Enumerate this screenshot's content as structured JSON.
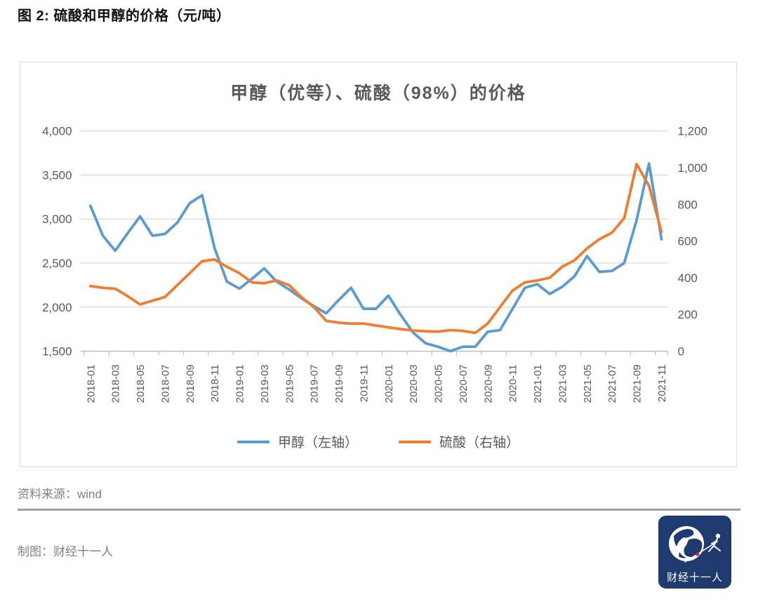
{
  "page": {
    "header_title": "图 2: 硫酸和甲醇的价格（元/吨）",
    "source_note": "资料来源：wind",
    "credit_note": "制图：财经十一人",
    "logo_text": "财经十一人"
  },
  "chart_data": {
    "type": "line",
    "title": "甲醇（优等）、硫酸（98%）的价格",
    "x": [
      "2018-01",
      "2018-02",
      "2018-03",
      "2018-04",
      "2018-05",
      "2018-06",
      "2018-07",
      "2018-08",
      "2018-09",
      "2018-10",
      "2018-11",
      "2018-12",
      "2019-01",
      "2019-02",
      "2019-03",
      "2019-04",
      "2019-05",
      "2019-06",
      "2019-07",
      "2019-08",
      "2019-09",
      "2019-10",
      "2019-11",
      "2019-12",
      "2020-01",
      "2020-02",
      "2020-03",
      "2020-04",
      "2020-05",
      "2020-06",
      "2020-07",
      "2020-08",
      "2020-09",
      "2020-10",
      "2020-11",
      "2020-12",
      "2021-01",
      "2021-02",
      "2021-03",
      "2021-04",
      "2021-05",
      "2021-06",
      "2021-07",
      "2021-08",
      "2021-09",
      "2021-10",
      "2021-11"
    ],
    "x_tick_labels": [
      "2018-01",
      "2018-03",
      "2018-05",
      "2018-07",
      "2018-09",
      "2018-11",
      "2019-01",
      "2019-03",
      "2019-05",
      "2019-07",
      "2019-09",
      "2019-11",
      "2020-01",
      "2020-03",
      "2020-05",
      "2020-07",
      "2020-09",
      "2020-11",
      "2021-01",
      "2021-03",
      "2021-05",
      "2021-07",
      "2021-09",
      "2021-11"
    ],
    "series": [
      {
        "name": "甲醇（左轴）",
        "axis": "left",
        "color": "#5B9BD5",
        "values": [
          3150,
          2810,
          2640,
          2840,
          3030,
          2810,
          2830,
          2960,
          3180,
          3270,
          2670,
          2290,
          2210,
          2320,
          2440,
          2290,
          2200,
          2100,
          2010,
          1930,
          2080,
          2220,
          1980,
          1980,
          2130,
          1910,
          1710,
          1590,
          1550,
          1500,
          1550,
          1550,
          1720,
          1740,
          1980,
          2220,
          2260,
          2150,
          2230,
          2350,
          2580,
          2400,
          2410,
          2500,
          2990,
          3630,
          2770
        ]
      },
      {
        "name": "硫酸（右轴）",
        "axis": "right",
        "color": "#ED7D31",
        "values": [
          355,
          345,
          340,
          300,
          255,
          275,
          295,
          360,
          425,
          490,
          500,
          460,
          425,
          375,
          370,
          385,
          360,
          295,
          240,
          165,
          155,
          150,
          150,
          140,
          130,
          120,
          112,
          108,
          106,
          115,
          110,
          100,
          150,
          240,
          330,
          375,
          385,
          400,
          460,
          495,
          560,
          610,
          645,
          725,
          1020,
          900,
          650
        ]
      }
    ],
    "left_axis": {
      "min": 1500,
      "max": 4000,
      "step": 500,
      "labels": [
        "4,000",
        "3,500",
        "3,000",
        "2,500",
        "2,000",
        "1,500"
      ]
    },
    "right_axis": {
      "min": 0,
      "max": 1200,
      "step": 200,
      "labels": [
        "1,200",
        "1,000",
        "800",
        "600",
        "400",
        "200",
        "0"
      ]
    },
    "grid": true,
    "legend_position": "bottom",
    "unit": "元/吨"
  }
}
